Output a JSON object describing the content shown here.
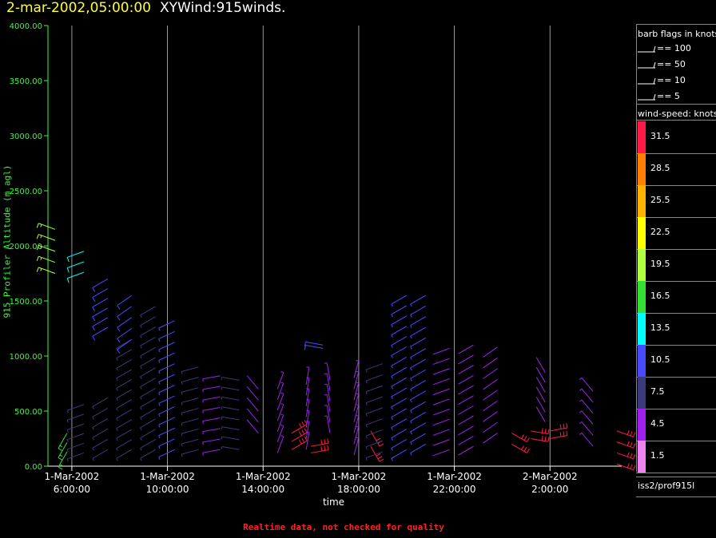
{
  "header": {
    "time": "2-mar-2002,05:00:00",
    "product": "XYWind:915winds."
  },
  "footer": {
    "note": "Realtime data, not checked for quality"
  },
  "legend": {
    "barb_title": "barb flags in knots",
    "barbs": [
      {
        "label": "== 100",
        "value": 100
      },
      {
        "label": "== 50",
        "value": 50
      },
      {
        "label": "== 10",
        "value": 10
      },
      {
        "label": "== 5",
        "value": 5
      }
    ],
    "speed_title": "wind-speed: knots",
    "speed_bins": [
      {
        "label": "31.5",
        "color": "#ff1a4a"
      },
      {
        "label": "28.5",
        "color": "#ff7f00"
      },
      {
        "label": "25.5",
        "color": "#ffb000"
      },
      {
        "label": "22.5",
        "color": "#ffff00"
      },
      {
        "label": "19.5",
        "color": "#b0ff40"
      },
      {
        "label": "16.5",
        "color": "#33e033"
      },
      {
        "label": "13.5",
        "color": "#00ffff"
      },
      {
        "label": "10.5",
        "color": "#4a4aff"
      },
      {
        "label": "7.5",
        "color": "#3a3a7a"
      },
      {
        "label": "4.5",
        "color": "#a020f0"
      },
      {
        "label": "1.5",
        "color": "#ee82ee"
      }
    ],
    "source": "iss2/prof915l"
  },
  "chart_data": {
    "type": "scatter",
    "title": "XYWind:915winds.",
    "xlabel": "time",
    "ylabel": "915 Profiler Altitude (m agl)",
    "ylim": [
      0,
      4000
    ],
    "yticks": [
      "0.00",
      "500.00",
      "1000.00",
      "1500.00",
      "2000.00",
      "2500.00",
      "3000.00",
      "3500.00",
      "4000.00"
    ],
    "xlim_hours": [
      5.0,
      29.0
    ],
    "xticks": [
      {
        "date": "1-Mar-2002",
        "time": "6:00:00"
      },
      {
        "date": "1-Mar-2002",
        "time": "10:00:00"
      },
      {
        "date": "1-Mar-2002",
        "time": "14:00:00"
      },
      {
        "date": "1-Mar-2002",
        "time": "18:00:00"
      },
      {
        "date": "1-Mar-2002",
        "time": "22:00:00"
      },
      {
        "date": "2-Mar-2002",
        "time": "2:00:00"
      }
    ],
    "grid": true,
    "note": "wind barbs; each profile = time, altitude range, speed (kt), direction (deg from)",
    "profiles": [
      {
        "t": 5.3,
        "hmin": 1750,
        "hmax": 2150,
        "speed": 18,
        "dir": 290
      },
      {
        "t": 5.8,
        "hmin": 130,
        "hmax": 300,
        "speed": 16,
        "dir": 210
      },
      {
        "t": 6.5,
        "hmin": 120,
        "hmax": 560,
        "speed": 6,
        "dir": 250
      },
      {
        "t": 6.5,
        "hmin": 1760,
        "hmax": 1950,
        "speed": 13,
        "dir": 250
      },
      {
        "t": 7.5,
        "hmin": 150,
        "hmax": 620,
        "speed": 6,
        "dir": 240
      },
      {
        "t": 7.5,
        "hmin": 1260,
        "hmax": 1700,
        "speed": 11,
        "dir": 240
      },
      {
        "t": 8.5,
        "hmin": 150,
        "hmax": 1150,
        "speed": 8,
        "dir": 240
      },
      {
        "t": 8.5,
        "hmin": 1150,
        "hmax": 1550,
        "speed": 10,
        "dir": 235
      },
      {
        "t": 9.5,
        "hmin": 150,
        "hmax": 1450,
        "speed": 8,
        "dir": 240
      },
      {
        "t": 10.3,
        "hmin": 150,
        "hmax": 1320,
        "speed": 9,
        "dir": 245
      },
      {
        "t": 11.3,
        "hmin": 150,
        "hmax": 900,
        "speed": 6,
        "dir": 255
      },
      {
        "t": 12.2,
        "hmin": 150,
        "hmax": 820,
        "speed": 5,
        "dir": 260
      },
      {
        "t": 13.0,
        "hmin": 150,
        "hmax": 780,
        "speed": 6,
        "dir": 280
      },
      {
        "t": 13.8,
        "hmin": 300,
        "hmax": 700,
        "speed": 4,
        "dir": 320
      },
      {
        "t": 14.6,
        "hmin": 120,
        "hmax": 700,
        "speed": 5,
        "dir": 20
      },
      {
        "t": 15.2,
        "hmin": 150,
        "hmax": 300,
        "speed": 31,
        "dir": 60
      },
      {
        "t": 16.0,
        "hmin": 120,
        "hmax": 180,
        "speed": 31,
        "dir": 80
      },
      {
        "t": 15.8,
        "hmin": 150,
        "hmax": 740,
        "speed": 5,
        "dir": 10
      },
      {
        "t": 16.8,
        "hmin": 300,
        "hmax": 780,
        "speed": 5,
        "dir": 350
      },
      {
        "t": 16.5,
        "hmin": 1070,
        "hmax": 1100,
        "speed": 10,
        "dir": 280
      },
      {
        "t": 17.8,
        "hmin": 100,
        "hmax": 800,
        "speed": 5,
        "dir": 15
      },
      {
        "t": 18.5,
        "hmin": 180,
        "hmax": 320,
        "speed": 31,
        "dir": 150
      },
      {
        "t": 19.0,
        "hmin": 130,
        "hmax": 930,
        "speed": 6,
        "dir": 250
      },
      {
        "t": 20.0,
        "hmin": 150,
        "hmax": 1550,
        "speed": 9,
        "dir": 240
      },
      {
        "t": 20.8,
        "hmin": 200,
        "hmax": 1550,
        "speed": 9,
        "dir": 240
      },
      {
        "t": 21.8,
        "hmin": 150,
        "hmax": 1070,
        "speed": 3,
        "dir": 250
      },
      {
        "t": 22.8,
        "hmin": 180,
        "hmax": 1100,
        "speed": 3,
        "dir": 240
      },
      {
        "t": 23.8,
        "hmin": 300,
        "hmax": 1080,
        "speed": 3,
        "dir": 235
      },
      {
        "t": 24.4,
        "hmin": 200,
        "hmax": 300,
        "speed": 31,
        "dir": 120
      },
      {
        "t": 25.2,
        "hmin": 250,
        "hmax": 320,
        "speed": 31,
        "dir": 100
      },
      {
        "t": 25.8,
        "hmin": 400,
        "hmax": 850,
        "speed": 4,
        "dir": 330
      },
      {
        "t": 26.0,
        "hmin": 250,
        "hmax": 320,
        "speed": 31,
        "dir": 80
      },
      {
        "t": 27.8,
        "hmin": 180,
        "hmax": 680,
        "speed": 5,
        "dir": 320
      },
      {
        "t": 28.8,
        "hmin": 20,
        "hmax": 320,
        "speed": 31,
        "dir": 110
      }
    ]
  }
}
